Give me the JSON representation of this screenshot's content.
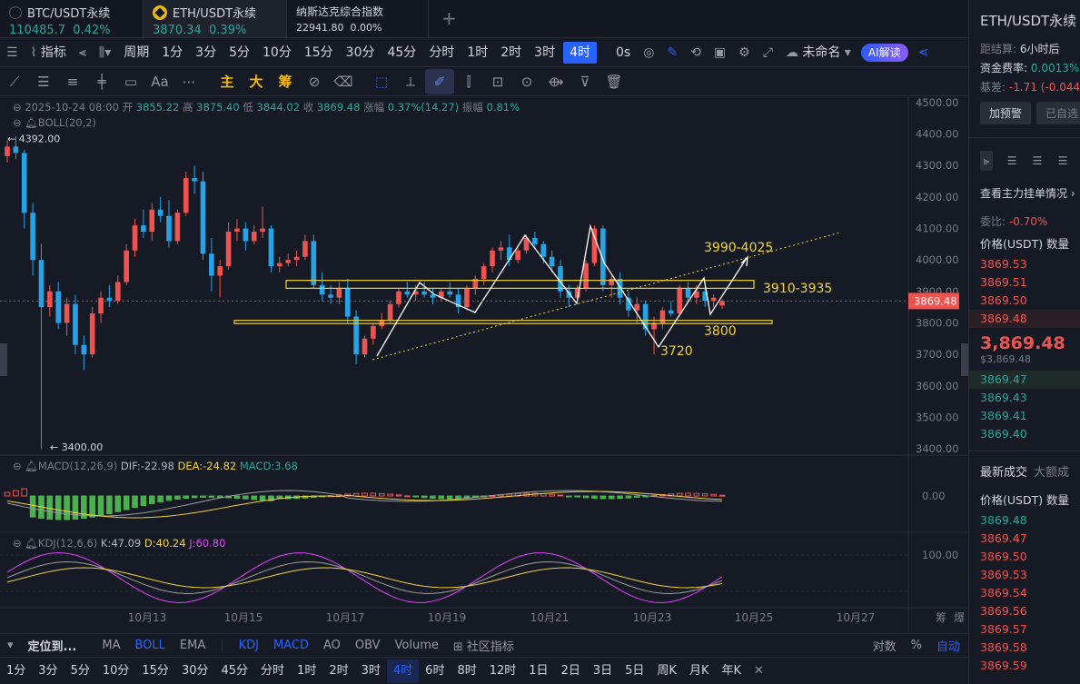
{
  "tabs": [
    {
      "name": "BTC/USDT永续",
      "price": "110485.7",
      "change": "0.42%"
    },
    {
      "name": "ETH/USDT永续",
      "price": "3870.34",
      "change": "0.39%"
    },
    {
      "name": "纳斯达克综合指数",
      "price": "22941.80",
      "change": "0.00%"
    }
  ],
  "toolbar": {
    "indicator": "指标",
    "period": "周期",
    "intervals": [
      "1分",
      "3分",
      "5分",
      "10分",
      "15分",
      "30分",
      "45分",
      "分时",
      "1时",
      "2时",
      "3时",
      "4时"
    ],
    "selected": "4时",
    "zero_s": "0s",
    "unnamed": "未命名",
    "ai": "AI解读"
  },
  "drawing_tools": {
    "text_tool": "Aa",
    "main": "主",
    "big": "大",
    "chip": "筹"
  },
  "ohlc": {
    "date": "2025-10-24 08:00",
    "open_l": "开",
    "open": "3855.22",
    "high_l": "高",
    "high": "3875.40",
    "low_l": "低",
    "low": "3844.02",
    "close_l": "收",
    "close": "3869.48",
    "chg_l": "涨幅",
    "chg": "0.37%(14.27)",
    "amp_l": "振幅",
    "amp": "0.81%"
  },
  "boll_label": "BOLL(20,2)",
  "macd": {
    "label": "MACD(12,26,9)",
    "dif": "DIF:-22.98",
    "dea": "DEA:-24.82",
    "macd": "MACD:3.68",
    "zero": "0.00"
  },
  "kdj": {
    "label": "KDJ(12,6,6)",
    "k": "K:47.09",
    "d": "D:40.24",
    "j": "J:60.80",
    "level": "100.00"
  },
  "price_axis": [
    "4500.00",
    "4400.00",
    "4300.00",
    "4200.00",
    "4100.00",
    "4000.00",
    "3900.00",
    "3800.00",
    "3700.00",
    "3600.00",
    "3500.00",
    "3400.00"
  ],
  "last_price": "3869.48",
  "high_mark": "4392.00",
  "low_mark": "3400.00",
  "annotations": {
    "a1": "3990-4025",
    "a2": "3910-3935",
    "a3": "3800",
    "a4": "3720"
  },
  "dates": [
    "10月13",
    "10月15",
    "10月17",
    "10月19",
    "10月21",
    "10月23",
    "10月25",
    "10月27"
  ],
  "axis_corner": [
    "筹",
    "爆"
  ],
  "bottom_indicators": {
    "locate": "定位到...",
    "items": [
      "MA",
      "BOLL",
      "EMA",
      "KDJ",
      "MACD",
      "AO",
      "OBV",
      "Volume"
    ],
    "community": "社区指标",
    "log": "对数",
    "pct": "%",
    "auto": "自动"
  },
  "bottom_intervals": [
    "1分",
    "3分",
    "5分",
    "10分",
    "15分",
    "30分",
    "45分",
    "分时",
    "1时",
    "2时",
    "3时",
    "4时",
    "6时",
    "8时",
    "12时",
    "1日",
    "2日",
    "3日",
    "5日",
    "周K",
    "月K",
    "年K"
  ],
  "bottom_selected": "4时",
  "right": {
    "title": "ETH/USDT永续",
    "settle_l": "距结算:",
    "settle": "6小时后",
    "fund_l": "资金费率:",
    "fund": "0.0013%",
    "basis_l": "基差:",
    "basis": "-1.71 (-0.044",
    "alert": "加预警",
    "fav": "已自选",
    "orders": "查看主力挂单情况",
    "ratio_l": "委比:",
    "ratio": "-0.70%",
    "price_h": "价格(USDT)",
    "qty_h": "数量",
    "asks": [
      "3869.53",
      "3869.51",
      "3869.50",
      "3869.48"
    ],
    "mid": "3,869.48",
    "mid_sub": "$3,869.48",
    "bids": [
      "3869.47",
      "3869.43",
      "3869.41",
      "3869.40"
    ],
    "trades_tab": "最新成交",
    "big_tab": "大额成",
    "trades": [
      {
        "p": "3869.48",
        "c": "g"
      },
      {
        "p": "3869.47",
        "c": "r"
      },
      {
        "p": "3869.50",
        "c": "r"
      },
      {
        "p": "3869.53",
        "c": "r"
      },
      {
        "p": "3869.54",
        "c": "r"
      },
      {
        "p": "3869.56",
        "c": "r"
      },
      {
        "p": "3869.57",
        "c": "r"
      },
      {
        "p": "3869.58",
        "c": "r"
      },
      {
        "p": "3869.59",
        "c": "r"
      }
    ]
  },
  "colors": {
    "up": "#ef5350",
    "down": "#26a69a",
    "accent": "#2962ff",
    "annot": "#f0d43a"
  },
  "chart_data": {
    "type": "candlestick",
    "interval": "4时",
    "ohlc": [
      [
        4330,
        4380,
        4310,
        4360
      ],
      [
        4360,
        4392,
        4320,
        4340
      ],
      [
        4340,
        4350,
        4100,
        4150
      ],
      [
        4150,
        4180,
        3950,
        4000
      ],
      [
        4000,
        4050,
        3400,
        3850
      ],
      [
        3850,
        3920,
        3820,
        3900
      ],
      [
        3900,
        3930,
        3780,
        3800
      ],
      [
        3800,
        3880,
        3760,
        3860
      ],
      [
        3860,
        3890,
        3700,
        3730
      ],
      [
        3730,
        3760,
        3650,
        3700
      ],
      [
        3700,
        3850,
        3690,
        3830
      ],
      [
        3830,
        3900,
        3800,
        3880
      ],
      [
        3880,
        3920,
        3850,
        3870
      ],
      [
        3870,
        3950,
        3860,
        3930
      ],
      [
        3930,
        4050,
        3920,
        4030
      ],
      [
        4030,
        4130,
        4010,
        4110
      ],
      [
        4110,
        4160,
        4070,
        4090
      ],
      [
        4090,
        4180,
        4060,
        4160
      ],
      [
        4160,
        4200,
        4120,
        4140
      ],
      [
        4140,
        4190,
        4040,
        4060
      ],
      [
        4060,
        4160,
        4050,
        4150
      ],
      [
        4150,
        4280,
        4140,
        4260
      ],
      [
        4260,
        4300,
        4210,
        4250
      ],
      [
        4250,
        4280,
        4000,
        4020
      ],
      [
        4020,
        4070,
        3900,
        3950
      ],
      [
        3950,
        4000,
        3880,
        3980
      ],
      [
        3980,
        4120,
        3970,
        4090
      ],
      [
        4090,
        4130,
        4060,
        4100
      ],
      [
        4100,
        4120,
        4030,
        4060
      ],
      [
        4060,
        4110,
        4050,
        4090
      ],
      [
        4090,
        4170,
        4070,
        4100
      ],
      [
        4100,
        4110,
        3960,
        3980
      ],
      [
        3980,
        4010,
        3960,
        3990
      ],
      [
        3990,
        4020,
        3980,
        4000
      ],
      [
        4000,
        4030,
        3980,
        4010
      ],
      [
        4010,
        4080,
        4000,
        4060
      ],
      [
        4060,
        4080,
        3910,
        3920
      ],
      [
        3920,
        3960,
        3870,
        3890
      ],
      [
        3890,
        3920,
        3860,
        3880
      ],
      [
        3880,
        3930,
        3860,
        3910
      ],
      [
        3910,
        3940,
        3800,
        3820
      ],
      [
        3820,
        3840,
        3670,
        3700
      ],
      [
        3700,
        3760,
        3690,
        3750
      ],
      [
        3750,
        3800,
        3730,
        3790
      ],
      [
        3790,
        3830,
        3780,
        3810
      ],
      [
        3810,
        3870,
        3800,
        3860
      ],
      [
        3860,
        3910,
        3850,
        3900
      ],
      [
        3900,
        3930,
        3880,
        3890
      ],
      [
        3890,
        3920,
        3870,
        3900
      ],
      [
        3900,
        3930,
        3880,
        3890
      ],
      [
        3890,
        3910,
        3860,
        3880
      ],
      [
        3880,
        3910,
        3870,
        3900
      ],
      [
        3900,
        3930,
        3880,
        3890
      ],
      [
        3890,
        3910,
        3830,
        3850
      ],
      [
        3850,
        3920,
        3840,
        3910
      ],
      [
        3910,
        3950,
        3890,
        3940
      ],
      [
        3940,
        3990,
        3920,
        3980
      ],
      [
        3980,
        4040,
        3960,
        4030
      ],
      [
        4030,
        4060,
        4000,
        4040
      ],
      [
        4040,
        4080,
        3980,
        4000
      ],
      [
        4000,
        4040,
        3990,
        4030
      ],
      [
        4030,
        4080,
        4020,
        4070
      ],
      [
        4070,
        4090,
        4040,
        4050
      ],
      [
        4050,
        4060,
        3990,
        4010
      ],
      [
        4010,
        4030,
        3960,
        3980
      ],
      [
        3980,
        4000,
        3880,
        3900
      ],
      [
        3900,
        3920,
        3850,
        3880
      ],
      [
        3880,
        3920,
        3870,
        3910
      ],
      [
        3910,
        4000,
        3900,
        3990
      ],
      [
        3990,
        4110,
        3980,
        4100
      ],
      [
        4100,
        4110,
        3900,
        3920
      ],
      [
        3920,
        3950,
        3880,
        3940
      ],
      [
        3940,
        3960,
        3860,
        3880
      ],
      [
        3880,
        3900,
        3820,
        3840
      ],
      [
        3840,
        3880,
        3800,
        3860
      ],
      [
        3860,
        3870,
        3760,
        3780
      ],
      [
        3780,
        3820,
        3700,
        3800
      ],
      [
        3800,
        3850,
        3780,
        3840
      ],
      [
        3840,
        3870,
        3820,
        3830
      ],
      [
        3830,
        3920,
        3820,
        3910
      ],
      [
        3910,
        3930,
        3870,
        3880
      ],
      [
        3880,
        3920,
        3860,
        3900
      ],
      [
        3900,
        3910,
        3850,
        3870
      ],
      [
        3870,
        3890,
        3850,
        3880
      ],
      [
        3855,
        3875,
        3844,
        3869
      ]
    ],
    "ylim": [
      3380,
      4520
    ],
    "levels": [
      {
        "name": "3910-3935",
        "y1": 3910,
        "y2": 3935
      },
      {
        "name": "3800",
        "y1": 3798,
        "y2": 3808
      }
    ]
  }
}
